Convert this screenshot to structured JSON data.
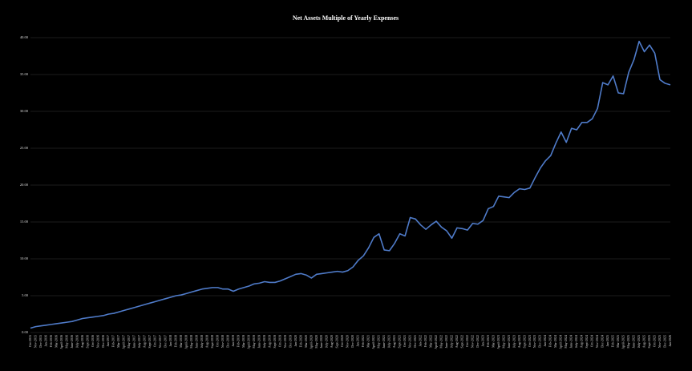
{
  "chart_data": {
    "type": "line",
    "title": "Net Assets Multiple of Yearly Expenses",
    "categories": [
      "Oct-2015",
      "Nov-2015",
      "Dec-2015",
      "Jan-2016",
      "Feb-2016",
      "Mar-2016",
      "April-2016",
      "May-2016",
      "June-2016",
      "July-2016",
      "Aug-2016",
      "Sept-2016",
      "Oct-2016",
      "Nov-2016",
      "Dec-2016",
      "Jan-2017",
      "Feb-2017",
      "Mar-2017",
      "April-2017",
      "May-2017",
      "June-2017",
      "July-2017",
      "Aug-2017",
      "Sept-2017",
      "Oct-2017",
      "Nov-2017",
      "Dec-2017",
      "Jan-2018",
      "Feb-2018",
      "Mar-2018",
      "April-2018",
      "May-2018",
      "June-2018",
      "July-2018",
      "Aug-2018",
      "Sept-2018",
      "Oct-2018",
      "Nov-2018",
      "Dec-2018",
      "Jan-2019",
      "Feb-2019",
      "Mar-2019",
      "April-2019",
      "May-2019",
      "June-2019",
      "July-2019",
      "Aug-2019",
      "Sept-2019",
      "Oct-2019",
      "Nov-2019",
      "Dec-2019",
      "Jan-2020",
      "Feb-2020",
      "Mar-2020",
      "April-2020",
      "May-2020",
      "June-2020",
      "July-2020",
      "Aug-2020",
      "Sept-2020",
      "Oct-2020",
      "Nov-2020",
      "Dec-2020",
      "Jan-2021",
      "Feb-2021",
      "Mar-2021",
      "April-2021",
      "May-2021",
      "June-2021",
      "July-2021",
      "Aug-2021",
      "Sept-2021",
      "Oct-2021",
      "Nov-2021",
      "Dec-2021",
      "Jan-2022",
      "Feb-2022",
      "Mar-2022",
      "April-2022",
      "May-2022",
      "June-2022",
      "July-2022",
      "Aug-2022",
      "Sept-2022",
      "Oct-2022",
      "Nov-2022",
      "Dec-2022",
      "Jan-2023",
      "Feb-2023",
      "Mar-2023",
      "April-2023",
      "May-2023",
      "June-2023",
      "July-2023",
      "Aug-2023",
      "Sept-2023",
      "Oct-2023",
      "Nov-2023",
      "Dec-2023",
      "Jan-2024",
      "Feb-2024",
      "Mar-2024",
      "April-2024",
      "May-2024",
      "June-2024",
      "July-2024",
      "Aug-2024",
      "Sept-2024",
      "Oct-2024",
      "Nov-2024",
      "Dec-2024",
      "Jan-2025",
      "Feb-2025",
      "Mar-2025",
      "April-2025",
      "May-2025",
      "June-2025",
      "July-2025",
      "Aug-2025",
      "Sept-2025",
      "Oct-2025",
      "Nov-2025",
      "Dec-2025",
      "Jan-2026"
    ],
    "series": [
      {
        "name": "Net Assets Multiple",
        "color": "#4f7bc9",
        "values": [
          0.6,
          0.8,
          0.9,
          1.0,
          1.1,
          1.2,
          1.3,
          1.4,
          1.5,
          1.7,
          1.9,
          2.0,
          2.1,
          2.2,
          2.3,
          2.5,
          2.6,
          2.8,
          3.0,
          3.2,
          3.4,
          3.6,
          3.8,
          4.0,
          4.2,
          4.4,
          4.6,
          4.8,
          5.0,
          5.1,
          5.3,
          5.5,
          5.7,
          5.9,
          6.0,
          6.1,
          6.1,
          5.9,
          5.9,
          5.6,
          5.9,
          6.1,
          6.3,
          6.6,
          6.7,
          6.9,
          6.8,
          6.8,
          7.0,
          7.3,
          7.6,
          7.9,
          8.0,
          7.8,
          7.4,
          7.9,
          8.0,
          8.1,
          8.2,
          8.3,
          8.2,
          8.4,
          8.9,
          9.8,
          10.4,
          11.5,
          12.9,
          13.4,
          11.2,
          11.1,
          12.1,
          13.4,
          13.1,
          15.6,
          15.4,
          14.6,
          14.0,
          14.6,
          15.1,
          14.3,
          13.8,
          12.8,
          14.2,
          14.1,
          13.9,
          14.8,
          14.7,
          15.2,
          16.8,
          17.1,
          18.5,
          18.4,
          18.3,
          19.0,
          19.5,
          19.4,
          19.6,
          21.0,
          22.3,
          23.3,
          24.0,
          25.7,
          27.2,
          25.8,
          27.7,
          27.5,
          28.5,
          28.5,
          29.0,
          30.4,
          33.9,
          33.6,
          34.8,
          32.5,
          32.4,
          35.3,
          37.0,
          39.5,
          38.1,
          39.0,
          37.9,
          34.3,
          33.8,
          33.6
        ]
      }
    ],
    "ylim": [
      0,
      40
    ],
    "yticks": [
      {
        "value": 0,
        "label": "0.00"
      },
      {
        "value": 5,
        "label": "5.00"
      },
      {
        "value": 10,
        "label": "10.00"
      },
      {
        "value": 15,
        "label": "15.00"
      },
      {
        "value": 20,
        "label": "20.00"
      },
      {
        "value": 25,
        "label": "25.00"
      },
      {
        "value": 30,
        "label": "30.00"
      },
      {
        "value": 35,
        "label": "35.00"
      },
      {
        "value": 40,
        "label": "40.00"
      }
    ],
    "grid": true
  }
}
